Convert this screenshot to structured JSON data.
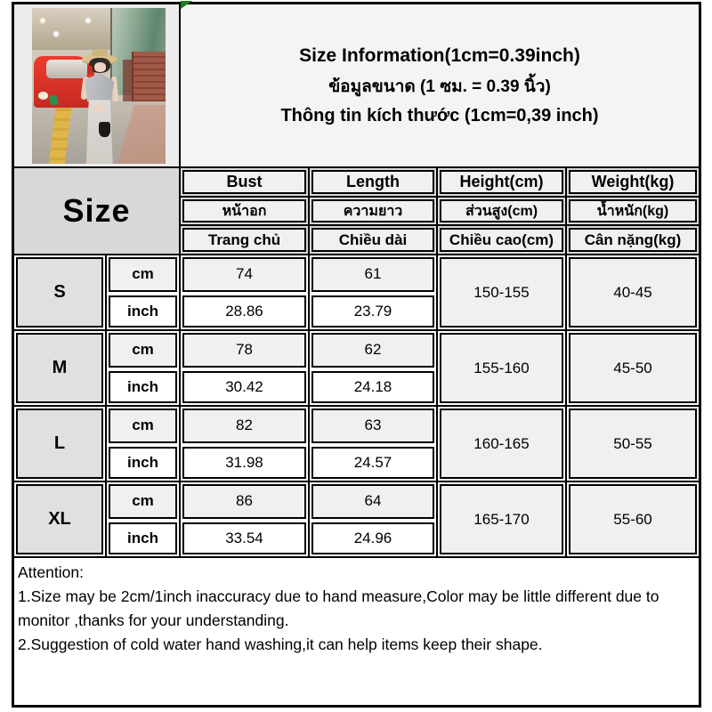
{
  "title": {
    "en": "Size Information(1cm=0.39inch)",
    "th": "ข้อมูลขนาด (1 ซม. = 0.39 นิ้ว)",
    "vi": "Thông tin kích thước (1cm=0,39 inch)"
  },
  "size_header": "Size",
  "header_rows": {
    "en": {
      "bust": "Bust",
      "length": "Length",
      "height": "Height(cm)",
      "weight": "Weight(kg)"
    },
    "th": {
      "bust": "หน้าอก",
      "length": "ความยาว",
      "height": "ส่วนสูง(cm)",
      "weight": "น้ำหนัก(kg)"
    },
    "vi": {
      "bust": "Trang chủ",
      "length": "Chiều dài",
      "height": "Chiều cao(cm)",
      "weight": "Cân nặng(kg)"
    }
  },
  "units": {
    "cm": "cm",
    "inch": "inch"
  },
  "rows": [
    {
      "size": "S",
      "bust_cm": "74",
      "length_cm": "61",
      "bust_inch": "28.86",
      "length_inch": "23.79",
      "height": "150-155",
      "weight": "40-45"
    },
    {
      "size": "M",
      "bust_cm": "78",
      "length_cm": "62",
      "bust_inch": "30.42",
      "length_inch": "24.18",
      "height": "155-160",
      "weight": "45-50"
    },
    {
      "size": "L",
      "bust_cm": "82",
      "length_cm": "63",
      "bust_inch": "31.98",
      "length_inch": "24.57",
      "height": "160-165",
      "weight": "50-55"
    },
    {
      "size": "XL",
      "bust_cm": "86",
      "length_cm": "64",
      "bust_inch": "33.54",
      "length_inch": "24.96",
      "height": "165-170",
      "weight": "55-60"
    }
  ],
  "attention": {
    "heading": "Attention:",
    "notes": [
      "1.Size may be 2cm/1inch inaccuracy due to hand measure,Color may be little different due to monitor ,thanks for your understanding.",
      "2.Suggestion of cold water hand washing,it can help items keep their shape."
    ]
  },
  "colors": {
    "grid": "#000000",
    "header_band": "#d8d8d8",
    "box_light": "#f0f0f0",
    "box_white": "#ffffff",
    "size_box": "#e0e0e0",
    "marker_green": "#1d7c1d"
  }
}
